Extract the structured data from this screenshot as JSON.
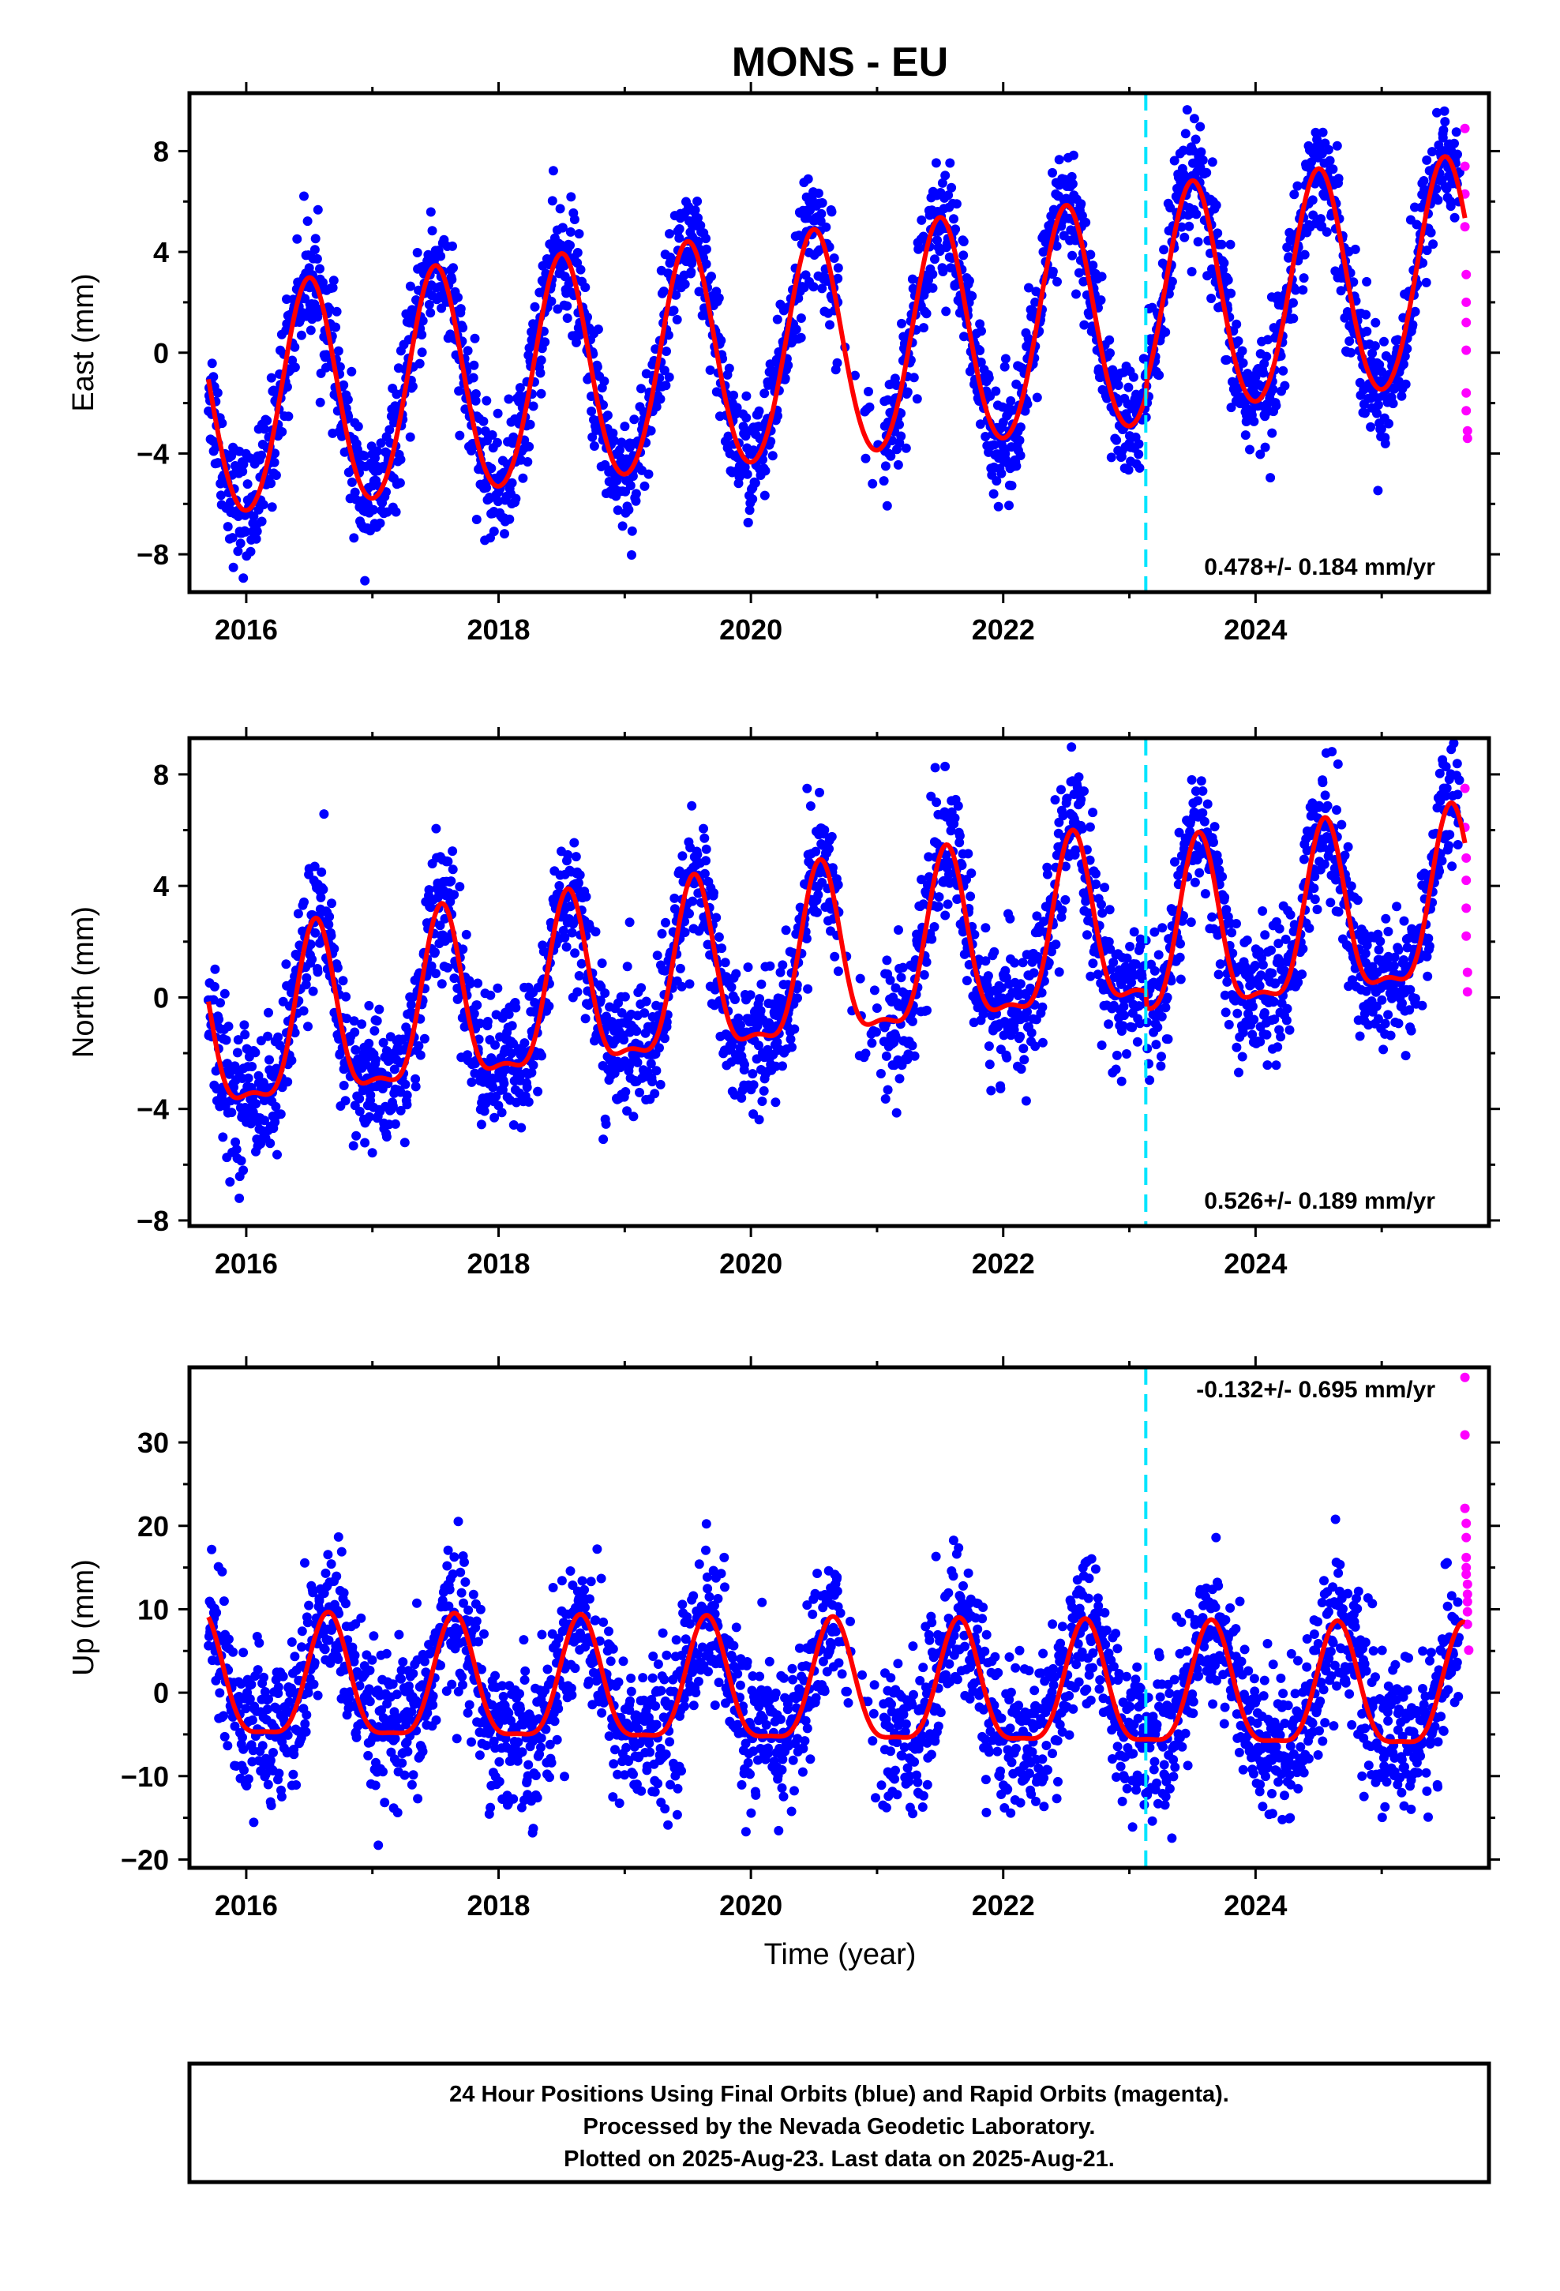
{
  "chart_data": {
    "type": "scatter",
    "title": "MONS - EU",
    "xlabel": "Time (year)",
    "xlim": [
      2015.55,
      2025.85
    ],
    "x_ticks": [
      "2016",
      "2018",
      "2020",
      "2022",
      "2024"
    ],
    "x_tick_values": [
      2016,
      2018,
      2020,
      2022,
      2024
    ],
    "event_line": {
      "x": 2023.13,
      "color": "#00e5ff",
      "style": "dashed"
    },
    "colors": {
      "final": "#0000ff",
      "rapid": "#ff00ff",
      "model": "#ff0000"
    },
    "series": [
      {
        "name": "final",
        "color": "#0000ff"
      },
      {
        "name": "rapid",
        "color": "#ff00ff"
      },
      {
        "name": "model",
        "color": "#ff0000"
      }
    ],
    "panels": [
      {
        "id": "east",
        "ylabel": "East (mm)",
        "ylim": [
          -9.5,
          10.3
        ],
        "y_ticks": [
          "8",
          "4",
          "0",
          "−4",
          "−8"
        ],
        "y_tick_values": [
          8,
          4,
          0,
          -4,
          -8
        ],
        "rate": "0.478+/- 0.184 mm/yr",
        "rate_position": "bottom-right",
        "model": {
          "base": -2.2,
          "trend": 0.478,
          "t0": 2015.7,
          "amp": 4.5,
          "peak": 2016.5,
          "semi_amp": 0.3,
          "offset": {
            "x": 2023.13,
            "dy": 0.5
          }
        },
        "noise": 1.2,
        "rapid": {
          "x": [
            2025.66,
            2025.66,
            2025.66,
            2025.66,
            2025.67,
            2025.67,
            2025.67,
            2025.67,
            2025.67,
            2025.67,
            2025.68,
            2025.68
          ],
          "y": [
            8.9,
            7.4,
            6.3,
            5.0,
            3.1,
            2.0,
            1.2,
            0.1,
            -1.6,
            -2.3,
            -3.1,
            -3.4
          ]
        }
      },
      {
        "id": "north",
        "ylabel": "North (mm)",
        "ylim": [
          -8.2,
          9.3
        ],
        "y_ticks": [
          "8",
          "4",
          "0",
          "−4",
          "−8"
        ],
        "y_tick_values": [
          8,
          4,
          0,
          -4,
          -8
        ],
        "rate": "0.526+/- 0.189 mm/yr",
        "rate_position": "bottom-right",
        "model": {
          "base": -1.6,
          "trend": 0.526,
          "t0": 2015.7,
          "amp": 3.0,
          "peak": 2016.55,
          "semi_amp": 1.0,
          "offset": {
            "x": 2023.13,
            "dy": -0.6
          }
        },
        "noise": 1.2,
        "rapid": {
          "x": [
            2025.66,
            2025.66,
            2025.67,
            2025.67,
            2025.67,
            2025.67,
            2025.68,
            2025.68
          ],
          "y": [
            7.5,
            6.1,
            5.0,
            4.2,
            3.2,
            2.2,
            0.9,
            0.2
          ]
        }
      },
      {
        "id": "up",
        "ylabel": "Up (mm)",
        "ylim": [
          -21,
          39
        ],
        "y_ticks": [
          "30",
          "20",
          "10",
          "0",
          "−10",
          "−20"
        ],
        "y_tick_values": [
          30,
          20,
          10,
          0,
          -10,
          -20
        ],
        "rate": "-0.132+/- 0.695 mm/yr",
        "rate_position": "top-right",
        "model": {
          "base": 0.6,
          "trend": -0.132,
          "t0": 2015.7,
          "amp": 7.2,
          "peak": 2016.65,
          "semi_amp": 2.0,
          "offset": {
            "x": 2023.13,
            "dy": 0
          }
        },
        "noise": 4.5,
        "rapid": {
          "x": [
            2025.66,
            2025.66,
            2025.66,
            2025.67,
            2025.67,
            2025.67,
            2025.67,
            2025.67,
            2025.68,
            2025.68,
            2025.68,
            2025.68,
            2025.68,
            2025.69
          ],
          "y": [
            37.8,
            30.9,
            22.1,
            20.3,
            18.6,
            16.2,
            15.0,
            14.2,
            13.0,
            11.8,
            10.9,
            9.7,
            8.2,
            5.1
          ]
        }
      }
    ]
  },
  "footer": {
    "lines": [
      "24 Hour Positions Using Final Orbits (blue) and Rapid Orbits (magenta).",
      "Processed by the Nevada Geodetic Laboratory.",
      "Plotted on 2025-Aug-23. Last data on 2025-Aug-21."
    ]
  }
}
